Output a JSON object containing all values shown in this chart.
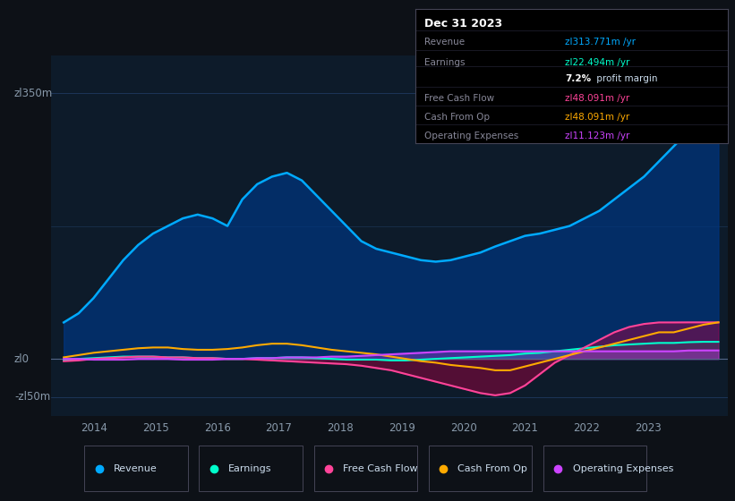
{
  "bg_color": "#0d1117",
  "plot_bg_color": "#0d1b2a",
  "grid_color": "#1e3a5f",
  "axis_label_color": "#8899aa",
  "text_color": "#ccddee",
  "ylabel_350": "zl350m",
  "ylabel_0": "zl0",
  "ylabel_neg50": "-zl50m",
  "xticks": [
    2014,
    2015,
    2016,
    2017,
    2018,
    2019,
    2020,
    2021,
    2022,
    2023
  ],
  "xlim": [
    2013.3,
    2024.3
  ],
  "ylim": [
    -75,
    400
  ],
  "series": {
    "Revenue": {
      "color": "#00aaff",
      "linewidth": 1.8
    },
    "Earnings": {
      "color": "#00ffcc",
      "linewidth": 1.5
    },
    "FreeCashFlow": {
      "color": "#ff4499",
      "linewidth": 1.5
    },
    "CashFromOp": {
      "color": "#ffaa00",
      "linewidth": 1.5
    },
    "OperatingExpenses": {
      "color": "#cc44ff",
      "linewidth": 1.5
    }
  },
  "revenue": [
    48,
    60,
    80,
    105,
    130,
    150,
    165,
    175,
    185,
    190,
    185,
    175,
    210,
    230,
    240,
    245,
    235,
    215,
    195,
    175,
    155,
    145,
    140,
    135,
    130,
    128,
    130,
    135,
    140,
    148,
    155,
    162,
    165,
    170,
    175,
    185,
    195,
    210,
    225,
    240,
    260,
    280,
    300,
    315,
    313.771
  ],
  "earnings": [
    -2,
    0,
    1,
    2,
    3,
    3,
    3,
    2,
    2,
    1,
    1,
    0,
    0,
    1,
    1,
    2,
    2,
    1,
    0,
    -1,
    -1,
    -1,
    -2,
    -2,
    -1,
    0,
    1,
    2,
    3,
    4,
    5,
    7,
    8,
    10,
    12,
    14,
    16,
    18,
    19,
    20,
    21,
    21,
    22,
    22.494,
    22.494
  ],
  "freecashflow": [
    -3,
    -2,
    0,
    1,
    2,
    3,
    3,
    2,
    2,
    1,
    1,
    0,
    0,
    -1,
    -2,
    -3,
    -4,
    -5,
    -6,
    -7,
    -9,
    -12,
    -15,
    -20,
    -25,
    -30,
    -35,
    -40,
    -45,
    -48,
    -45,
    -35,
    -20,
    -5,
    5,
    15,
    25,
    35,
    42,
    46,
    48,
    48,
    48.091,
    48.091,
    48.091
  ],
  "cashfromop": [
    2,
    5,
    8,
    10,
    12,
    14,
    15,
    15,
    13,
    12,
    12,
    13,
    15,
    18,
    20,
    20,
    18,
    15,
    12,
    10,
    8,
    6,
    3,
    0,
    -3,
    -5,
    -8,
    -10,
    -12,
    -15,
    -15,
    -10,
    -5,
    0,
    5,
    10,
    15,
    20,
    25,
    30,
    35,
    35,
    40,
    45,
    48.091
  ],
  "opexpenses": [
    0,
    0,
    -1,
    -1,
    -1,
    0,
    0,
    0,
    -1,
    -1,
    -1,
    0,
    0,
    1,
    1,
    2,
    2,
    2,
    3,
    3,
    4,
    5,
    6,
    7,
    8,
    9,
    10,
    10,
    10,
    10,
    10,
    10,
    10,
    10,
    10,
    10,
    10,
    10,
    10,
    10,
    10,
    10,
    11,
    11.123,
    11.123
  ],
  "info_box": {
    "title": "Dec 31 2023",
    "rows": [
      {
        "label": "Revenue",
        "value": "zl313.771m /yr",
        "value_color": "#00aaff"
      },
      {
        "label": "Earnings",
        "value": "zl22.494m /yr",
        "value_color": "#00ffcc"
      },
      {
        "label": "",
        "pct": "7.2%",
        "text": " profit margin"
      },
      {
        "label": "Free Cash Flow",
        "value": "zl48.091m /yr",
        "value_color": "#ff4499"
      },
      {
        "label": "Cash From Op",
        "value": "zl48.091m /yr",
        "value_color": "#ffaa00"
      },
      {
        "label": "Operating Expenses",
        "value": "zl11.123m /yr",
        "value_color": "#cc44ff"
      }
    ]
  },
  "legend": [
    {
      "label": "Revenue",
      "color": "#00aaff"
    },
    {
      "label": "Earnings",
      "color": "#00ffcc"
    },
    {
      "label": "Free Cash Flow",
      "color": "#ff4499"
    },
    {
      "label": "Cash From Op",
      "color": "#ffaa00"
    },
    {
      "label": "Operating Expenses",
      "color": "#cc44ff"
    }
  ]
}
